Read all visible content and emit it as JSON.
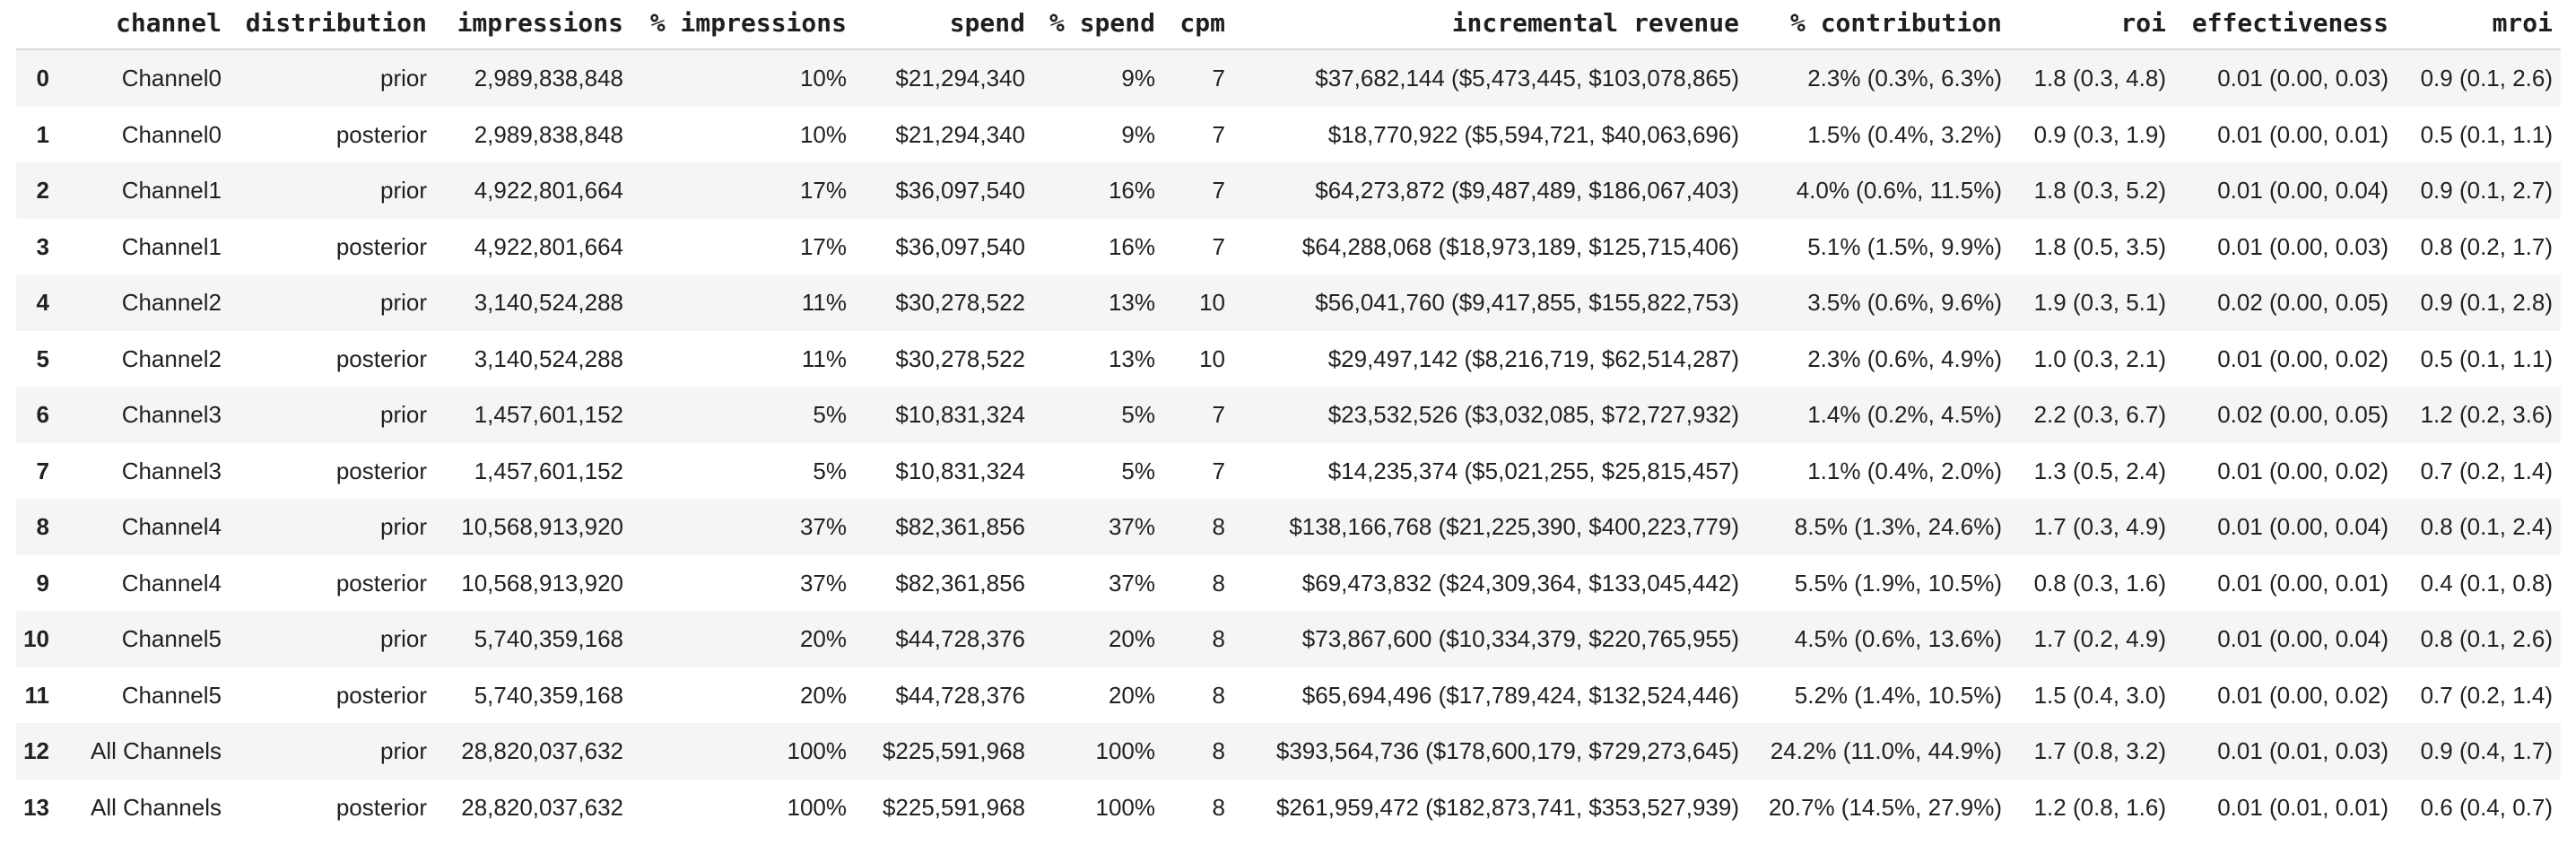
{
  "table": {
    "index_header": "",
    "headers": [
      "channel",
      "distribution",
      "impressions",
      "% impressions",
      "spend",
      "% spend",
      "cpm",
      "incremental revenue",
      "% contribution",
      "roi",
      "effectiveness",
      "mroi"
    ],
    "columns": [
      "index",
      "channel",
      "distribution",
      "impressions",
      "pct_impressions",
      "spend",
      "pct_spend",
      "cpm",
      "incremental_revenue",
      "pct_contribution",
      "roi",
      "effectiveness",
      "mroi"
    ],
    "rows": [
      {
        "index": "0",
        "channel": "Channel0",
        "distribution": "prior",
        "impressions": "2,989,838,848",
        "pct_impressions": "10%",
        "spend": "$21,294,340",
        "pct_spend": "9%",
        "cpm": "7",
        "incremental_revenue": "$37,682,144 ($5,473,445, $103,078,865)",
        "pct_contribution": "2.3% (0.3%, 6.3%)",
        "roi": "1.8 (0.3, 4.8)",
        "effectiveness": "0.01 (0.00, 0.03)",
        "mroi": "0.9 (0.1, 2.6)"
      },
      {
        "index": "1",
        "channel": "Channel0",
        "distribution": "posterior",
        "impressions": "2,989,838,848",
        "pct_impressions": "10%",
        "spend": "$21,294,340",
        "pct_spend": "9%",
        "cpm": "7",
        "incremental_revenue": "$18,770,922 ($5,594,721, $40,063,696)",
        "pct_contribution": "1.5% (0.4%, 3.2%)",
        "roi": "0.9 (0.3, 1.9)",
        "effectiveness": "0.01 (0.00, 0.01)",
        "mroi": "0.5 (0.1, 1.1)"
      },
      {
        "index": "2",
        "channel": "Channel1",
        "distribution": "prior",
        "impressions": "4,922,801,664",
        "pct_impressions": "17%",
        "spend": "$36,097,540",
        "pct_spend": "16%",
        "cpm": "7",
        "incremental_revenue": "$64,273,872 ($9,487,489, $186,067,403)",
        "pct_contribution": "4.0% (0.6%, 11.5%)",
        "roi": "1.8 (0.3, 5.2)",
        "effectiveness": "0.01 (0.00, 0.04)",
        "mroi": "0.9 (0.1, 2.7)"
      },
      {
        "index": "3",
        "channel": "Channel1",
        "distribution": "posterior",
        "impressions": "4,922,801,664",
        "pct_impressions": "17%",
        "spend": "$36,097,540",
        "pct_spend": "16%",
        "cpm": "7",
        "incremental_revenue": "$64,288,068 ($18,973,189, $125,715,406)",
        "pct_contribution": "5.1% (1.5%, 9.9%)",
        "roi": "1.8 (0.5, 3.5)",
        "effectiveness": "0.01 (0.00, 0.03)",
        "mroi": "0.8 (0.2, 1.7)"
      },
      {
        "index": "4",
        "channel": "Channel2",
        "distribution": "prior",
        "impressions": "3,140,524,288",
        "pct_impressions": "11%",
        "spend": "$30,278,522",
        "pct_spend": "13%",
        "cpm": "10",
        "incremental_revenue": "$56,041,760 ($9,417,855, $155,822,753)",
        "pct_contribution": "3.5% (0.6%, 9.6%)",
        "roi": "1.9 (0.3, 5.1)",
        "effectiveness": "0.02 (0.00, 0.05)",
        "mroi": "0.9 (0.1, 2.8)"
      },
      {
        "index": "5",
        "channel": "Channel2",
        "distribution": "posterior",
        "impressions": "3,140,524,288",
        "pct_impressions": "11%",
        "spend": "$30,278,522",
        "pct_spend": "13%",
        "cpm": "10",
        "incremental_revenue": "$29,497,142 ($8,216,719, $62,514,287)",
        "pct_contribution": "2.3% (0.6%, 4.9%)",
        "roi": "1.0 (0.3, 2.1)",
        "effectiveness": "0.01 (0.00, 0.02)",
        "mroi": "0.5 (0.1, 1.1)"
      },
      {
        "index": "6",
        "channel": "Channel3",
        "distribution": "prior",
        "impressions": "1,457,601,152",
        "pct_impressions": "5%",
        "spend": "$10,831,324",
        "pct_spend": "5%",
        "cpm": "7",
        "incremental_revenue": "$23,532,526 ($3,032,085, $72,727,932)",
        "pct_contribution": "1.4% (0.2%, 4.5%)",
        "roi": "2.2 (0.3, 6.7)",
        "effectiveness": "0.02 (0.00, 0.05)",
        "mroi": "1.2 (0.2, 3.6)"
      },
      {
        "index": "7",
        "channel": "Channel3",
        "distribution": "posterior",
        "impressions": "1,457,601,152",
        "pct_impressions": "5%",
        "spend": "$10,831,324",
        "pct_spend": "5%",
        "cpm": "7",
        "incremental_revenue": "$14,235,374 ($5,021,255, $25,815,457)",
        "pct_contribution": "1.1% (0.4%, 2.0%)",
        "roi": "1.3 (0.5, 2.4)",
        "effectiveness": "0.01 (0.00, 0.02)",
        "mroi": "0.7 (0.2, 1.4)"
      },
      {
        "index": "8",
        "channel": "Channel4",
        "distribution": "prior",
        "impressions": "10,568,913,920",
        "pct_impressions": "37%",
        "spend": "$82,361,856",
        "pct_spend": "37%",
        "cpm": "8",
        "incremental_revenue": "$138,166,768 ($21,225,390, $400,223,779)",
        "pct_contribution": "8.5% (1.3%, 24.6%)",
        "roi": "1.7 (0.3, 4.9)",
        "effectiveness": "0.01 (0.00, 0.04)",
        "mroi": "0.8 (0.1, 2.4)"
      },
      {
        "index": "9",
        "channel": "Channel4",
        "distribution": "posterior",
        "impressions": "10,568,913,920",
        "pct_impressions": "37%",
        "spend": "$82,361,856",
        "pct_spend": "37%",
        "cpm": "8",
        "incremental_revenue": "$69,473,832 ($24,309,364, $133,045,442)",
        "pct_contribution": "5.5% (1.9%, 10.5%)",
        "roi": "0.8 (0.3, 1.6)",
        "effectiveness": "0.01 (0.00, 0.01)",
        "mroi": "0.4 (0.1, 0.8)"
      },
      {
        "index": "10",
        "channel": "Channel5",
        "distribution": "prior",
        "impressions": "5,740,359,168",
        "pct_impressions": "20%",
        "spend": "$44,728,376",
        "pct_spend": "20%",
        "cpm": "8",
        "incremental_revenue": "$73,867,600 ($10,334,379, $220,765,955)",
        "pct_contribution": "4.5% (0.6%, 13.6%)",
        "roi": "1.7 (0.2, 4.9)",
        "effectiveness": "0.01 (0.00, 0.04)",
        "mroi": "0.8 (0.1, 2.6)"
      },
      {
        "index": "11",
        "channel": "Channel5",
        "distribution": "posterior",
        "impressions": "5,740,359,168",
        "pct_impressions": "20%",
        "spend": "$44,728,376",
        "pct_spend": "20%",
        "cpm": "8",
        "incremental_revenue": "$65,694,496 ($17,789,424, $132,524,446)",
        "pct_contribution": "5.2% (1.4%, 10.5%)",
        "roi": "1.5 (0.4, 3.0)",
        "effectiveness": "0.01 (0.00, 0.02)",
        "mroi": "0.7 (0.2, 1.4)"
      },
      {
        "index": "12",
        "channel": "All Channels",
        "distribution": "prior",
        "impressions": "28,820,037,632",
        "pct_impressions": "100%",
        "spend": "$225,591,968",
        "pct_spend": "100%",
        "cpm": "8",
        "incremental_revenue": "$393,564,736 ($178,600,179, $729,273,645)",
        "pct_contribution": "24.2% (11.0%, 44.9%)",
        "roi": "1.7 (0.8, 3.2)",
        "effectiveness": "0.01 (0.01, 0.03)",
        "mroi": "0.9 (0.4, 1.7)"
      },
      {
        "index": "13",
        "channel": "All Channels",
        "distribution": "posterior",
        "impressions": "28,820,037,632",
        "pct_impressions": "100%",
        "spend": "$225,591,968",
        "pct_spend": "100%",
        "cpm": "8",
        "incremental_revenue": "$261,959,472 ($182,873,741, $353,527,939)",
        "pct_contribution": "20.7% (14.5%, 27.9%)",
        "roi": "1.2 (0.8, 1.6)",
        "effectiveness": "0.01 (0.01, 0.01)",
        "mroi": "0.6 (0.4, 0.7)"
      }
    ]
  },
  "colors": {
    "background": "#ffffff",
    "row_stripe": "#f5f5f6",
    "header_border": "#d9d9d9",
    "header_text": "#1f1f1f",
    "body_text": "#202124"
  }
}
